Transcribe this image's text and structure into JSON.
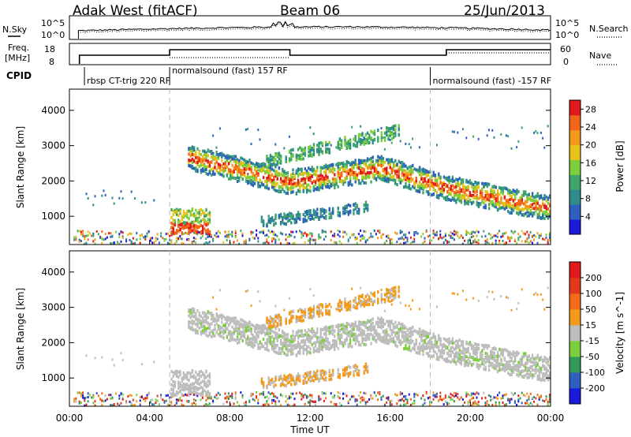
{
  "header": {
    "station": "Adak West (fitACF)",
    "beam": "Beam 06",
    "date": "25/Jun/2013"
  },
  "left_labels": {
    "nsky": "N.Sky",
    "freq_line1": "Freq.",
    "freq_line2": "[MHz]",
    "cpid": "CPID"
  },
  "right_labels": {
    "nsearch": "N.Search",
    "nave": "Nave"
  },
  "noise_axis": {
    "left_top": "10^5",
    "left_bottom": "10^0",
    "right_top": "10^5",
    "right_bottom": "10^0"
  },
  "freq_axis": {
    "left_top": "18",
    "left_bottom": "8",
    "right_top": "60",
    "right_bottom": "0"
  },
  "cpid_segments": [
    {
      "label": "rbsp CT-trig 220 RF",
      "start": "00:45",
      "end": "05:00"
    },
    {
      "label": "normalsound (fast) 157 RF",
      "start": "05:00",
      "end": "18:00"
    },
    {
      "label": "normalsound (fast) -157 RF",
      "start": "18:00",
      "end": "24:00"
    }
  ],
  "chart_data": [
    {
      "type": "heatmap",
      "panel": "power",
      "ylabel": "Slant Range [km]",
      "yticks": [
        "1000",
        "2000",
        "3000",
        "4000"
      ],
      "ylim": [
        200,
        4600
      ],
      "xlim_hours": [
        0,
        24
      ],
      "colorbar": {
        "label": "Power [dB]",
        "ticks": [
          "4",
          "8",
          "12",
          "16",
          "20",
          "24",
          "28"
        ],
        "range": [
          0,
          30
        ],
        "colors": [
          "#1a1adc",
          "#2f5fbf",
          "#2e8c8c",
          "#3fa56a",
          "#7ccf3c",
          "#e8c21a",
          "#f49a1a",
          "#f2661a",
          "#e01a1a"
        ]
      }
    },
    {
      "type": "heatmap",
      "panel": "velocity",
      "ylabel": "Slant Range [km]",
      "yticks": [
        "1000",
        "2000",
        "3000",
        "4000"
      ],
      "ylim": [
        200,
        4600
      ],
      "xlim_hours": [
        0,
        24
      ],
      "xlabel": "Time UT",
      "xticks": [
        "00:00",
        "04:00",
        "08:00",
        "12:00",
        "16:00",
        "20:00",
        "00:00"
      ],
      "colorbar": {
        "label": "Velocity [m s^-1]",
        "ticks": [
          "200",
          "100",
          "50",
          "15",
          "-15",
          "-50",
          "-100",
          "-200"
        ],
        "colors": [
          "#1a1adc",
          "#2f5fbf",
          "#2f9a5a",
          "#7ccf3c",
          "#bdbdbd",
          "#f49a1a",
          "#f26a1a",
          "#e03a1a",
          "#e01a1a"
        ]
      }
    }
  ]
}
